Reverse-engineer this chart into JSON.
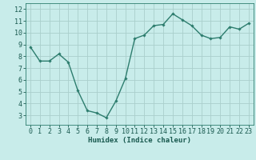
{
  "x": [
    0,
    1,
    2,
    3,
    4,
    5,
    6,
    7,
    8,
    9,
    10,
    11,
    12,
    13,
    14,
    15,
    16,
    17,
    18,
    19,
    20,
    21,
    22,
    23
  ],
  "y": [
    8.8,
    7.6,
    7.6,
    8.2,
    7.5,
    5.1,
    3.4,
    3.2,
    2.8,
    4.2,
    6.1,
    9.5,
    9.8,
    10.6,
    10.7,
    11.6,
    11.1,
    10.6,
    9.8,
    9.5,
    9.6,
    10.5,
    10.3,
    10.8
  ],
  "line_color": "#2d7d6e",
  "marker": "D",
  "marker_size": 1.8,
  "line_width": 1.0,
  "bg_color": "#c8ecea",
  "grid_color": "#aacfcc",
  "xlabel": "Humidex (Indice chaleur)",
  "xlabel_fontsize": 6.5,
  "tick_fontsize": 6,
  "xlim": [
    -0.5,
    23.5
  ],
  "ylim": [
    2.2,
    12.5
  ],
  "yticks": [
    3,
    4,
    5,
    6,
    7,
    8,
    9,
    10,
    11,
    12
  ],
  "xticks": [
    0,
    1,
    2,
    3,
    4,
    5,
    6,
    7,
    8,
    9,
    10,
    11,
    12,
    13,
    14,
    15,
    16,
    17,
    18,
    19,
    20,
    21,
    22,
    23
  ],
  "tick_color": "#1a5a50",
  "spine_color": "#2d7d6e"
}
